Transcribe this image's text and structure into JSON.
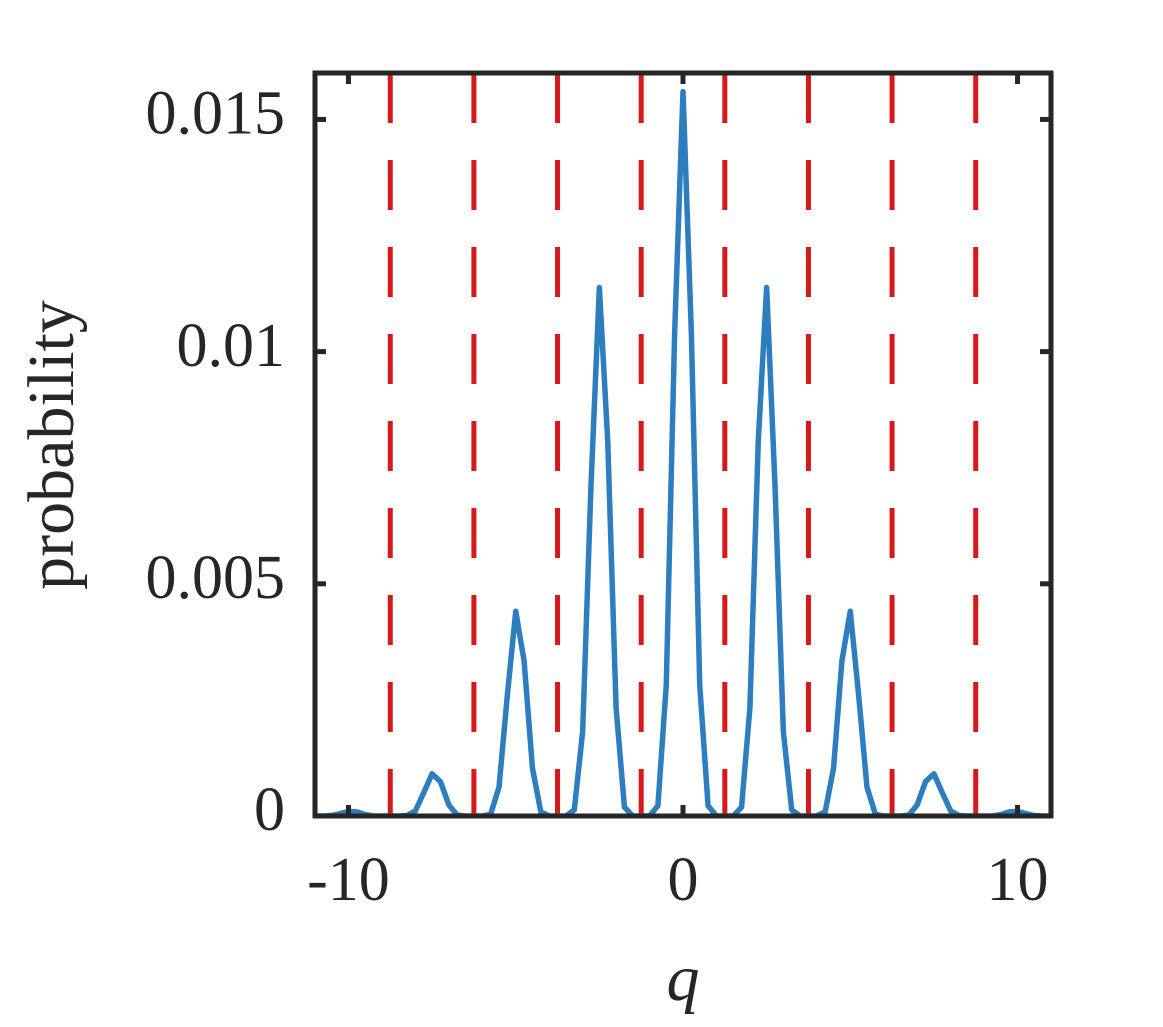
{
  "chart_data": {
    "type": "line",
    "xlabel": "q",
    "ylabel": "probability",
    "xlim": [
      -11,
      11
    ],
    "ylim": [
      0,
      0.016
    ],
    "xticks": [
      -10,
      0,
      10
    ],
    "yticks": [
      0,
      0.005,
      0.01,
      0.015
    ],
    "grid": false,
    "vlines": {
      "color": "#d7191c",
      "x": [
        -8.75,
        -6.25,
        -3.75,
        -1.25,
        1.25,
        3.75,
        6.25,
        8.75
      ]
    },
    "x": [
      -11,
      -10.75,
      -10.5,
      -10.25,
      -10,
      -9.75,
      -9.5,
      -9.25,
      -9,
      -8.75,
      -8.5,
      -8.25,
      -8,
      -7.75,
      -7.5,
      -7.25,
      -7,
      -6.75,
      -6.5,
      -6.25,
      -6,
      -5.75,
      -5.5,
      -5.25,
      -5,
      -4.75,
      -4.5,
      -4.25,
      -4,
      -3.75,
      -3.5,
      -3.25,
      -3,
      -2.75,
      -2.5,
      -2.25,
      -2,
      -1.75,
      -1.5,
      -1.25,
      -1,
      -0.75,
      -0.5,
      -0.25,
      0,
      0.25,
      0.5,
      0.75,
      1,
      1.25,
      1.5,
      1.75,
      2,
      2.25,
      2.5,
      2.75,
      3,
      3.25,
      3.5,
      3.75,
      4,
      4.25,
      4.5,
      4.75,
      5,
      5.25,
      5.5,
      5.75,
      6,
      6.25,
      6.5,
      6.75,
      7,
      7.25,
      7.5,
      7.75,
      8,
      8.25,
      8.5,
      8.75,
      9,
      9.25,
      9.5,
      9.75,
      10,
      10.25,
      10.5,
      10.75,
      11
    ],
    "series": [
      {
        "color": "#2e7dbf",
        "values": [
          0,
          0,
          1e-05,
          5e-05,
          0.0001,
          9e-05,
          3e-05,
          0,
          0,
          0,
          0,
          1e-05,
          0.00011,
          0.0005,
          0.00091,
          0.00074,
          0.00024,
          2e-05,
          0,
          0,
          0,
          4e-05,
          0.00062,
          0.0026,
          0.00441,
          0.00334,
          0.00103,
          9e-05,
          0,
          0,
          0,
          0.00013,
          0.00181,
          0.00712,
          0.01138,
          0.00808,
          0.00233,
          0.00019,
          0,
          0,
          0,
          0.00022,
          0.00282,
          0.0104,
          0.0156,
          0.0104,
          0.00282,
          0.00022,
          0,
          0,
          0,
          0.00019,
          0.00233,
          0.00808,
          0.01138,
          0.00712,
          0.00181,
          0.00013,
          0,
          0,
          0,
          9e-05,
          0.00103,
          0.00334,
          0.00441,
          0.0026,
          0.00062,
          4e-05,
          0,
          0,
          0,
          2e-05,
          0.00024,
          0.00074,
          0.00091,
          0.0005,
          0.00011,
          1e-05,
          0,
          0,
          0,
          0,
          3e-05,
          9e-05,
          0.0001,
          5e-05,
          1e-05,
          0,
          0
        ]
      }
    ]
  }
}
